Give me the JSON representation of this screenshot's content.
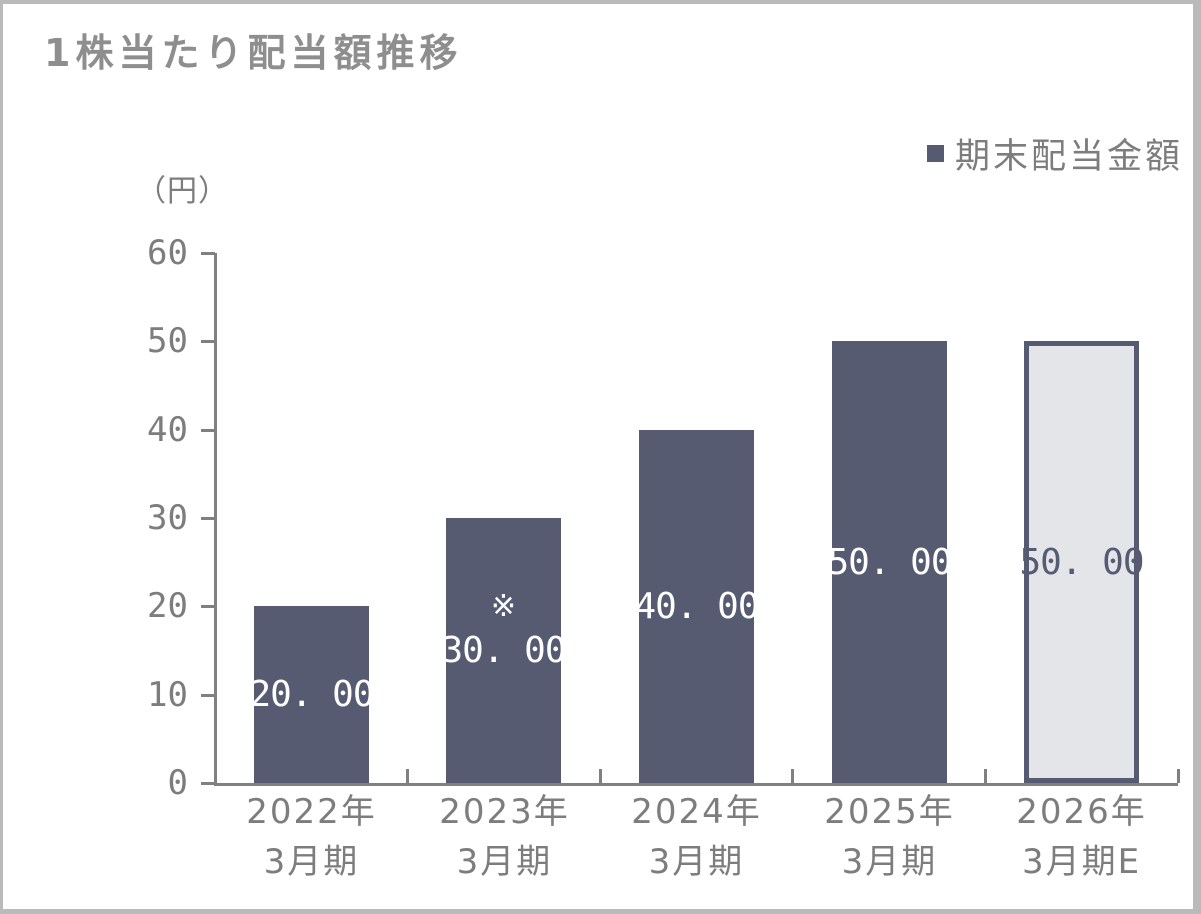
{
  "chart_data": {
    "type": "bar",
    "title": "1株当たり配当額推移",
    "unit_label": "（円）",
    "legend": {
      "label": "期末配当金額",
      "position": "top-right"
    },
    "categories": [
      "2022年3月期",
      "2023年3月期",
      "2024年3月期",
      "2025年3月期",
      "2026年3月期E"
    ],
    "category_lines": [
      [
        "2022年",
        "3月期"
      ],
      [
        "2023年",
        "3月期"
      ],
      [
        "2024年",
        "3月期"
      ],
      [
        "2025年",
        "3月期"
      ],
      [
        "2026年",
        "3月期E"
      ]
    ],
    "series": [
      {
        "name": "期末配当金額",
        "values": [
          20,
          30,
          40,
          50,
          50
        ]
      }
    ],
    "values": [
      20,
      30,
      40,
      50,
      50
    ],
    "value_labels": [
      "20. 00",
      "30. 00",
      "40. 00",
      "50. 00",
      "50. 00"
    ],
    "annotations": [
      "",
      "※",
      "",
      "",
      ""
    ],
    "ylim": [
      0,
      60
    ],
    "yticks": [
      0,
      10,
      20,
      30,
      40,
      50,
      60
    ],
    "grid": false,
    "bar_color": "#565b72",
    "value_label_color": "#ffffff",
    "forecast_bar": {
      "index": 4,
      "fill": "#e3e5e9",
      "border_color": "#565b72",
      "label_color": "#565b72"
    }
  },
  "colors": {
    "frame_border": "#bababa",
    "axis": "#808080",
    "text_gray": "#7d7d7d",
    "title_gray": "#8e8e8e",
    "background": "#ffffff"
  }
}
